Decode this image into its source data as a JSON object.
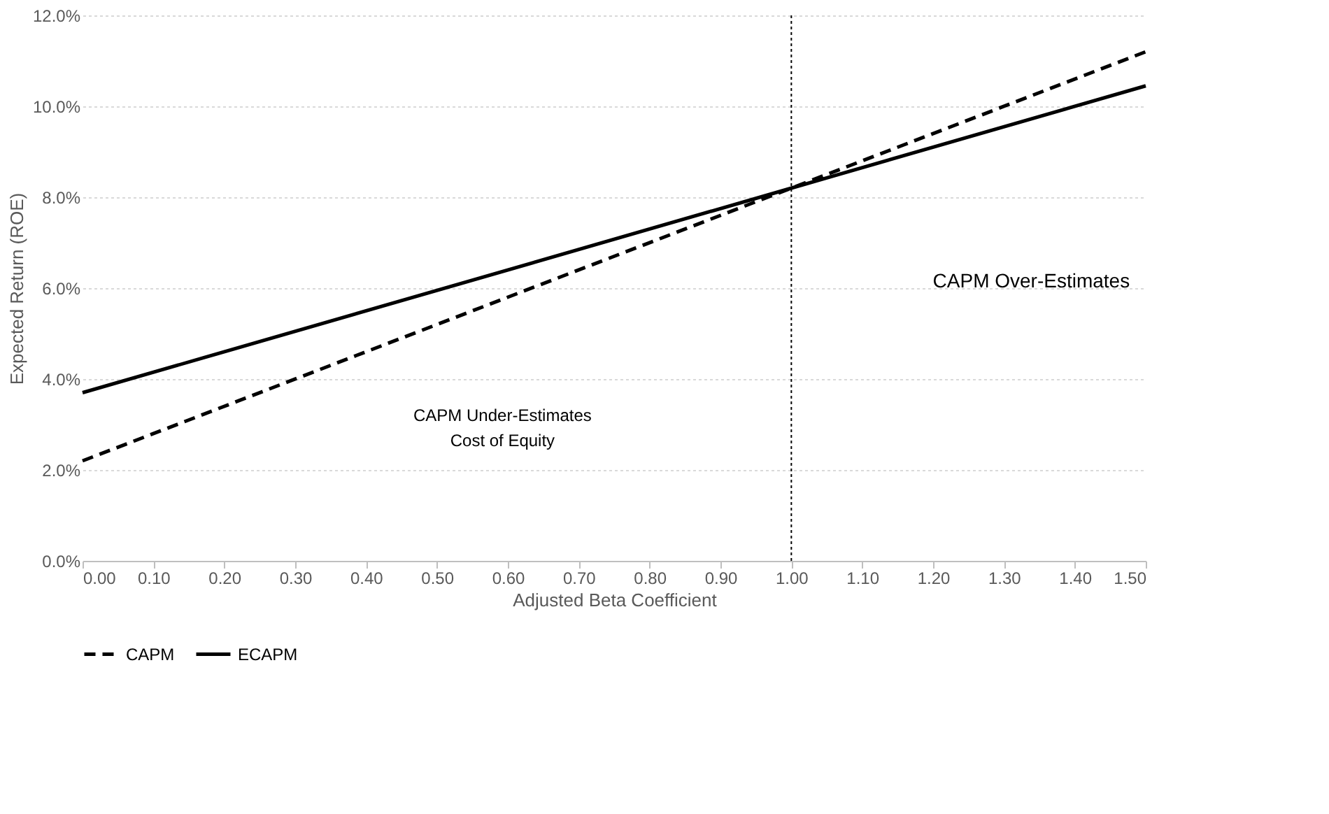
{
  "chart_data": {
    "type": "line",
    "xlabel": "Adjusted Beta Coefficient",
    "ylabel": "Expected Return (ROE)",
    "x": [
      0,
      1,
      1.5
    ],
    "series": [
      {
        "name": "CAPM",
        "color": "#000000",
        "line_style": "dashed",
        "values": [
          2.2,
          8.2,
          11.2
        ]
      },
      {
        "name": "ECAPM",
        "color": "#000000",
        "line_style": "solid",
        "values": [
          3.7,
          8.2,
          10.45
        ]
      }
    ],
    "xlim": [
      0,
      1.5
    ],
    "xticks": [
      {
        "value": 0,
        "label": "0.00"
      },
      {
        "value": 0.1,
        "label": "0.10"
      },
      {
        "value": 0.2,
        "label": "0.20"
      },
      {
        "value": 0.3,
        "label": "0.30"
      },
      {
        "value": 0.4,
        "label": "0.40"
      },
      {
        "value": 0.5,
        "label": "0.50"
      },
      {
        "value": 0.6,
        "label": "0.60"
      },
      {
        "value": 0.7,
        "label": "0.70"
      },
      {
        "value": 0.8,
        "label": "0.80"
      },
      {
        "value": 0.9,
        "label": "0.90"
      },
      {
        "value": 1,
        "label": "1.00"
      },
      {
        "value": 1.1,
        "label": "1.10"
      },
      {
        "value": 1.2,
        "label": "1.20"
      },
      {
        "value": 1.3,
        "label": "1.30"
      },
      {
        "value": 1.4,
        "label": "1.40"
      },
      {
        "value": 1.5,
        "label": "1.50"
      }
    ],
    "ylim": [
      0,
      12
    ],
    "yticks": [
      {
        "value": 0,
        "label": "0.0%"
      },
      {
        "value": 2,
        "label": "2.0%"
      },
      {
        "value": 4,
        "label": "4.0%"
      },
      {
        "value": 6,
        "label": "6.0%"
      },
      {
        "value": 8,
        "label": "8.0%"
      },
      {
        "value": 10,
        "label": "10.0%"
      },
      {
        "value": 12,
        "label": "12.0%"
      }
    ],
    "grid": "y",
    "legend": "bottom",
    "marker": "none",
    "ref_lines": [
      {
        "axis": "x",
        "value": 1,
        "line_style": "dotted",
        "color": "#000000"
      }
    ],
    "annotations": [
      "CAPM Under-Estimates\nCost of Equity",
      "CAPM Over-Estimates"
    ]
  }
}
